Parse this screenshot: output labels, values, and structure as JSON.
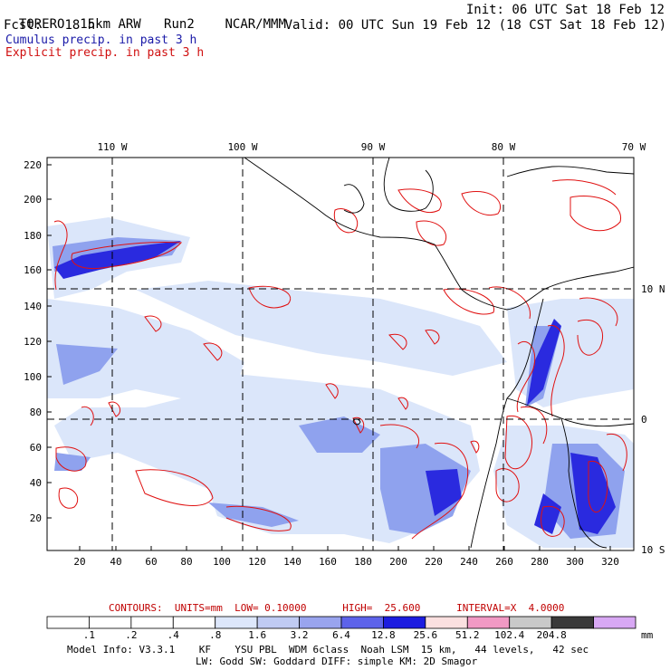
{
  "header": {
    "model": "TORERO",
    "resolution": "15km ARW",
    "run": "Run2",
    "org": "NCAR/MMM",
    "init": "Init: 06 UTC Sat 18 Feb 12",
    "fcst_label": "Fcst:",
    "fcst_value": "18 h",
    "valid": "Valid: 00 UTC Sun 19 Feb 12 (18 CST Sat 18 Feb 12)",
    "line_cumulus": "Cumulus precip. in past 3 h",
    "line_explicit": "Explicit precip. in past 3 h"
  },
  "map": {
    "lon_labels": [
      "110 W",
      "100 W",
      "90 W",
      "80 W",
      "70 W"
    ],
    "lat_labels": [
      "10 N",
      "0",
      "10 S"
    ],
    "y_ticks": [
      "220",
      "200",
      "180",
      "160",
      "140",
      "120",
      "100",
      "80",
      "60",
      "40",
      "20"
    ],
    "x_ticks": [
      "20",
      "40",
      "60",
      "80",
      "100",
      "120",
      "140",
      "160",
      "180",
      "200",
      "220",
      "240",
      "260",
      "280",
      "300",
      "320"
    ],
    "colors": {
      "shade_light": "#dbe6fa",
      "shade_mid": "#8fa2ee",
      "shade_dark": "#2a2adf",
      "contour": "#e01010",
      "coast": "#000000"
    }
  },
  "contour_note": {
    "text": "CONTOURS:  UNITS=mm  LOW= 0.10000      HIGH=  25.600      INTERVAL=X  4.0000"
  },
  "colorbar": {
    "levels": [
      ".1",
      ".2",
      ".4",
      ".8",
      "1.6",
      "3.2",
      "6.4",
      "12.8",
      "25.6",
      "51.2",
      "102.4",
      "204.8"
    ],
    "colors": [
      "#ffffff",
      "#ffffff",
      "#ffffff",
      "#ffffff",
      "#dde7fb",
      "#c0cbf3",
      "#99a4ee",
      "#5d63ea",
      "#1c1ce0",
      "#fbe0e0",
      "#f199c4",
      "#c9c9c9",
      "#3a3a3a",
      "#d8a8f4"
    ],
    "unit": "mm"
  },
  "footer": {
    "line1": "Model Info: V3.3.1    KF    YSU PBL  WDM 6class  Noah LSM  15 km,   44 levels,   42 sec",
    "line2": "LW: Godd SW: Goddard DIFF: simple KM: 2D Smagor"
  }
}
